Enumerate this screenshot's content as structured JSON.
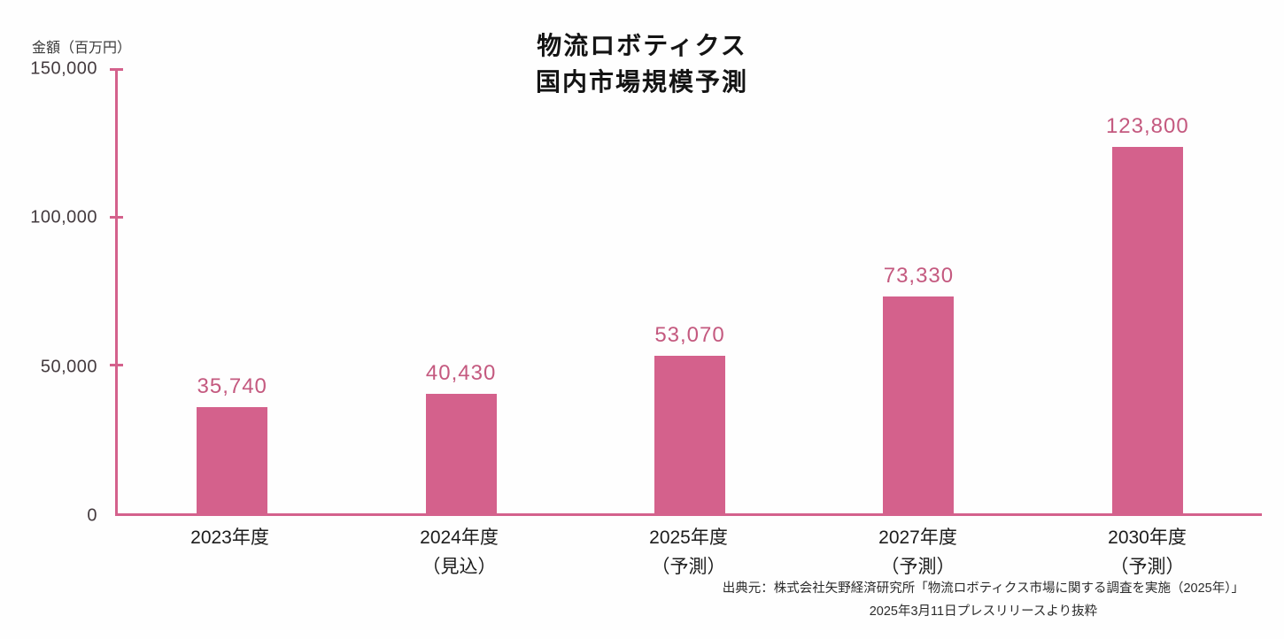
{
  "header": {
    "unit_label": "金額（百万円）",
    "title_line1": "物流ロボティクス",
    "title_line2": "国内市場規模予測"
  },
  "source": {
    "line1": "出典元：株式会社矢野経済研究所「物流ロボティクス市場に関する調査を実施（2025年）」",
    "line2": "2025年3月11日プレスリリースより抜粋"
  },
  "chart_data": {
    "type": "bar",
    "title": "物流ロボティクス 国内市場規模予測",
    "ylabel": "金額（百万円）",
    "categories": [
      "2023年度",
      "2024年度\n（見込）",
      "2025年度\n（予測）",
      "2027年度\n（予測）",
      "2030年度\n（予測）"
    ],
    "values": [
      35740,
      40430,
      53070,
      73330,
      123800
    ],
    "value_labels": [
      "35,740",
      "40,430",
      "53,070",
      "73,330",
      "123,800"
    ],
    "ylim": [
      0,
      150000
    ],
    "yticks": [
      0,
      50000,
      100000,
      150000
    ],
    "ytick_labels": [
      "0",
      "50,000",
      "100,000",
      "150,000"
    ],
    "grid": "off",
    "legend": "none",
    "bar_color": "#d4618c",
    "value_label_color": "#c4597f",
    "axis_color": "#d4618c"
  }
}
